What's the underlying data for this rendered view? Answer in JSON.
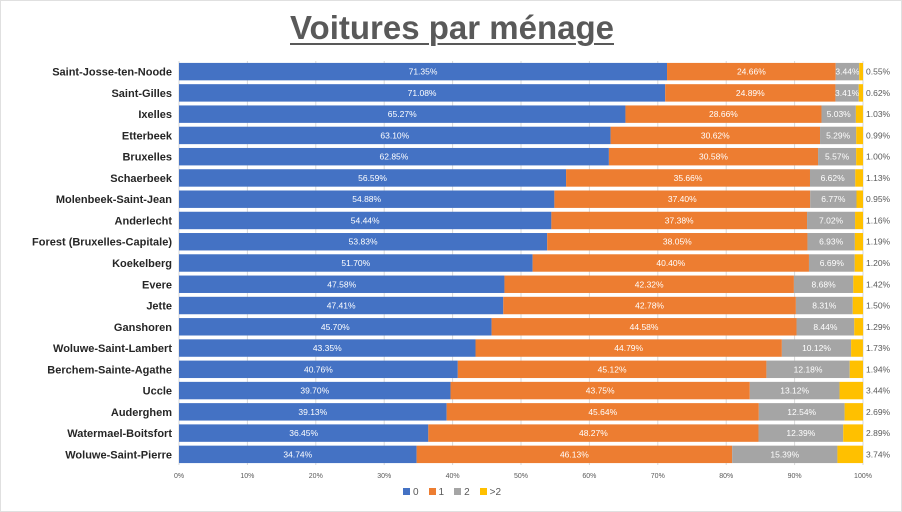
{
  "chart_data": {
    "type": "bar",
    "orientation": "horizontal",
    "stacked": "100%",
    "title": "Voitures par ménage",
    "categories": [
      "Saint-Josse-ten-Noode",
      "Saint-Gilles",
      "Ixelles",
      "Etterbeek",
      "Bruxelles",
      "Schaerbeek",
      "Molenbeek-Saint-Jean",
      "Anderlecht",
      "Forest (Bruxelles-Capitale)",
      "Koekelberg",
      "Evere",
      "Jette",
      "Ganshoren",
      "Woluwe-Saint-Lambert",
      "Berchem-Sainte-Agathe",
      "Uccle",
      "Auderghem",
      "Watermael-Boitsfort",
      "Woluwe-Saint-Pierre"
    ],
    "series": [
      {
        "name": "0",
        "color": "#4472C4",
        "values": [
          71.35,
          71.08,
          65.27,
          63.1,
          62.85,
          56.59,
          54.88,
          54.44,
          53.83,
          51.7,
          47.58,
          47.41,
          45.7,
          43.35,
          40.76,
          39.7,
          39.13,
          36.45,
          34.74
        ]
      },
      {
        "name": "1",
        "color": "#ED7D31",
        "values": [
          24.66,
          24.89,
          28.66,
          30.62,
          30.58,
          35.66,
          37.4,
          37.38,
          38.05,
          40.4,
          42.32,
          42.78,
          44.58,
          44.79,
          45.12,
          43.75,
          45.64,
          48.27,
          46.13
        ]
      },
      {
        "name": "2",
        "color": "#A5A5A5",
        "values": [
          3.44,
          3.41,
          5.03,
          5.29,
          5.57,
          6.62,
          6.77,
          7.02,
          6.93,
          6.69,
          8.68,
          8.31,
          8.44,
          10.12,
          12.18,
          13.12,
          12.54,
          12.39,
          15.39
        ]
      },
      {
        "name": ">2",
        "color": "#FFC000",
        "values": [
          0.55,
          0.62,
          1.03,
          0.99,
          1.0,
          1.13,
          0.95,
          1.16,
          1.19,
          1.2,
          1.42,
          1.5,
          1.29,
          1.73,
          1.94,
          3.44,
          2.69,
          2.89,
          3.74
        ]
      }
    ],
    "xlim": [
      0,
      100
    ],
    "xticks": [
      "0%",
      "10%",
      "20%",
      "30%",
      "40%",
      "50%",
      "60%",
      "70%",
      "80%",
      "90%",
      "100%"
    ],
    "grid": true,
    "legend": "bottom"
  }
}
